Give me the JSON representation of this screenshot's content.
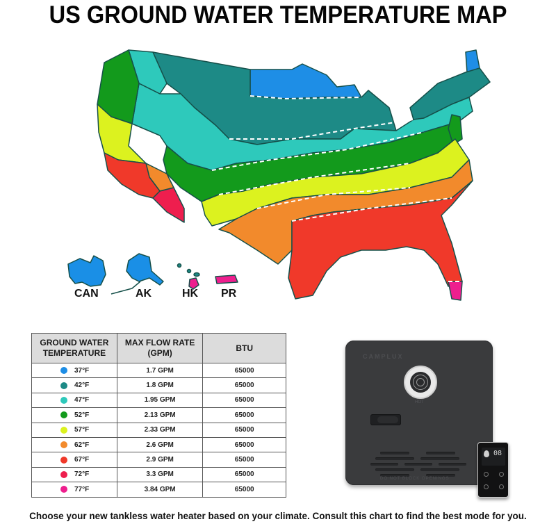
{
  "header": {
    "title": "US GROUND WATER TEMPERATURE MAP"
  },
  "map": {
    "territories": [
      {
        "code": "CAN",
        "label": "CAN",
        "color": "#1a8fe6"
      },
      {
        "code": "AK",
        "label": "AK",
        "color": "#1a8fe6"
      },
      {
        "code": "HK",
        "label": "HK",
        "color": "#e61f8a"
      },
      {
        "code": "PR",
        "label": "PR",
        "color": "#e61f8a"
      }
    ]
  },
  "table": {
    "headers": {
      "temp": [
        "GROUND WATER",
        "TEMPERATURE"
      ],
      "flow": [
        "MAX FLOW RATE",
        "(GPM)"
      ],
      "btu": "BTU"
    },
    "rows": [
      {
        "temp": "37°F",
        "flow": "1.7 GPM",
        "btu": "65000",
        "color": "#1e8ee6"
      },
      {
        "temp": "42°F",
        "flow": "1.8 GPM",
        "btu": "65000",
        "color": "#1d8a86"
      },
      {
        "temp": "47°F",
        "flow": "1.95 GPM",
        "btu": "65000",
        "color": "#2ec9bb"
      },
      {
        "temp": "52°F",
        "flow": "2.13 GPM",
        "btu": "65000",
        "color": "#139a1c"
      },
      {
        "temp": "57°F",
        "flow": "2.33 GPM",
        "btu": "65000",
        "color": "#dcf21f"
      },
      {
        "temp": "62°F",
        "flow": "2.6 GPM",
        "btu": "65000",
        "color": "#f28a2c"
      },
      {
        "temp": "67°F",
        "flow": "2.9 GPM",
        "btu": "65000",
        "color": "#f0392a"
      },
      {
        "temp": "72°F",
        "flow": "3.3 GPM",
        "btu": "65000",
        "color": "#ee1e4e"
      },
      {
        "temp": "77°F",
        "flow": "3.84 GPM",
        "btu": "65000",
        "color": "#ee1f8e"
      }
    ]
  },
  "product": {
    "brand": "CAMPLUX",
    "vent_label": "HOT",
    "warning": "DO NOT BLOCK OPENINGS",
    "remote_display": "08"
  },
  "footer": {
    "text": "Choose your new tankless water heater based on your climate. Consult this chart to find the best mode for you."
  },
  "chart_data": {
    "type": "table",
    "title": "US GROUND WATER TEMPERATURE MAP",
    "columns": [
      "GROUND WATER TEMPERATURE",
      "MAX FLOW RATE (GPM)",
      "BTU"
    ],
    "rows": [
      [
        "37°F",
        "1.7 GPM",
        65000
      ],
      [
        "42°F",
        "1.8 GPM",
        65000
      ],
      [
        "47°F",
        "1.95 GPM",
        65000
      ],
      [
        "52°F",
        "2.13 GPM",
        65000
      ],
      [
        "57°F",
        "2.33 GPM",
        65000
      ],
      [
        "62°F",
        "2.6 GPM",
        65000
      ],
      [
        "67°F",
        "2.9 GPM",
        65000
      ],
      [
        "72°F",
        "3.3 GPM",
        65000
      ],
      [
        "77°F",
        "3.84 GPM",
        65000
      ]
    ],
    "legend": [
      {
        "temp_f": 37,
        "color": "#1e8ee6"
      },
      {
        "temp_f": 42,
        "color": "#1d8a86"
      },
      {
        "temp_f": 47,
        "color": "#2ec9bb"
      },
      {
        "temp_f": 52,
        "color": "#139a1c"
      },
      {
        "temp_f": 57,
        "color": "#dcf21f"
      },
      {
        "temp_f": 62,
        "color": "#f28a2c"
      },
      {
        "temp_f": 67,
        "color": "#f0392a"
      },
      {
        "temp_f": 72,
        "color": "#ee1e4e"
      },
      {
        "temp_f": 77,
        "color": "#ee1f8e"
      }
    ],
    "map_labels": [
      "CAN",
      "AK",
      "HK",
      "PR"
    ]
  }
}
